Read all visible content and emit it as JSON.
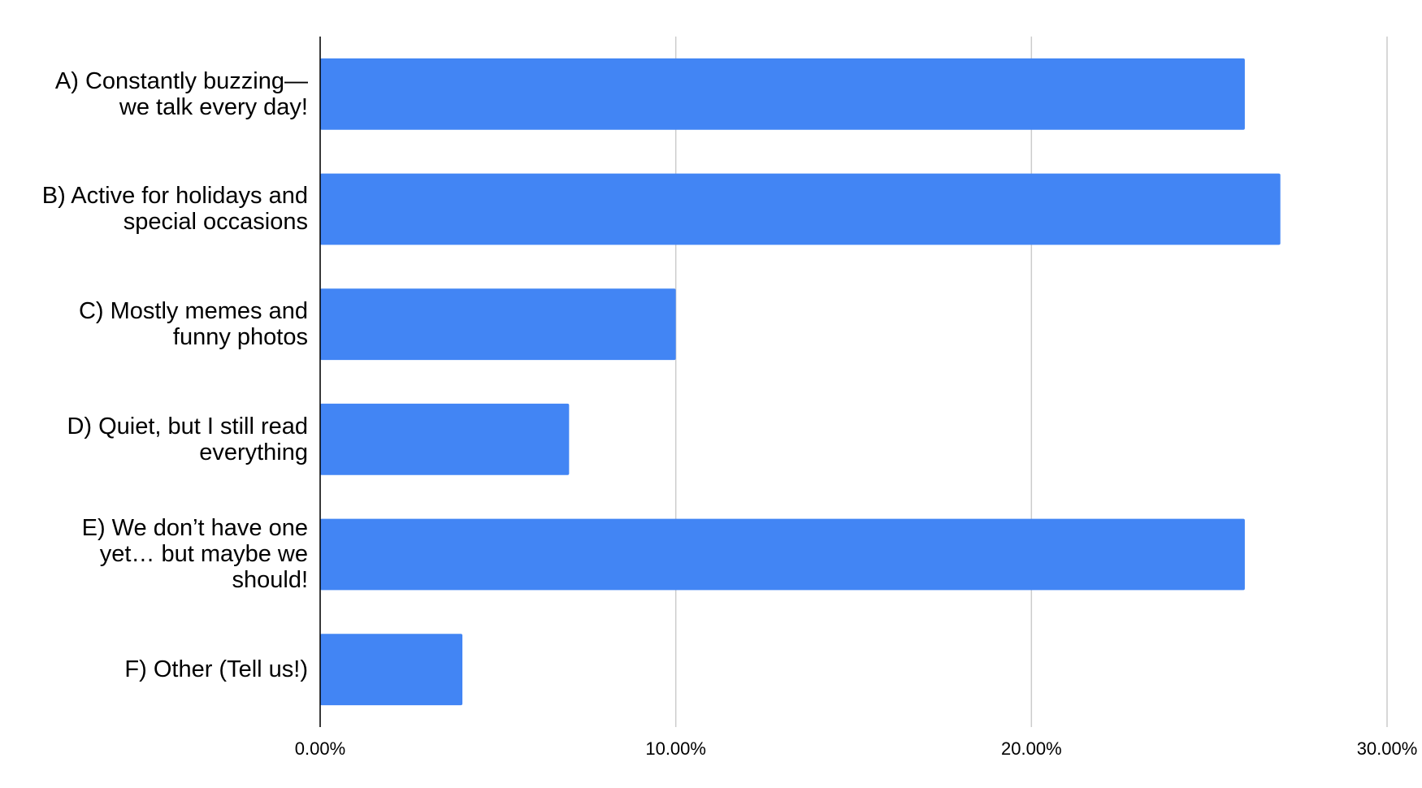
{
  "chart_data": {
    "type": "hbar",
    "categories": [
      "A) Constantly buzzing—we talk every day!",
      "B) Active for holidays and special occasions",
      "C) Mostly memes and funny photos",
      "D) Quiet, but I still read everything",
      "E) We don’t have one yet… but maybe we should!",
      "F) Other (Tell us!)"
    ],
    "values": [
      26,
      27,
      10,
      7,
      26,
      4
    ],
    "color": "#4285f4",
    "xlim": [
      0,
      30
    ],
    "xticks": [
      {
        "value": 0,
        "label": "0.00%"
      },
      {
        "value": 10,
        "label": "10.00%"
      },
      {
        "value": 20,
        "label": "20.00%"
      },
      {
        "value": 30,
        "label": "30.00%"
      }
    ],
    "grid": true
  }
}
